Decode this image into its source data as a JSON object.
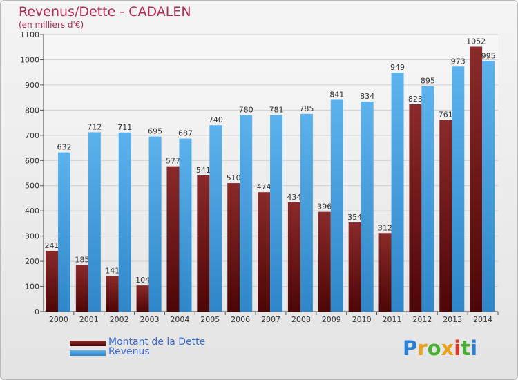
{
  "chart_data": {
    "type": "bar",
    "title": "Revenus/Dette - CADALEN",
    "subtitle": "(en milliers d'€)",
    "categories": [
      "2000",
      "2001",
      "2002",
      "2003",
      "2004",
      "2005",
      "2006",
      "2007",
      "2008",
      "2009",
      "2010",
      "2011",
      "2012",
      "2013",
      "2014"
    ],
    "series": [
      {
        "name": "Montant de la Dette",
        "color": "#6e1010",
        "values": [
          241,
          185,
          141,
          104,
          577,
          541,
          510,
          474,
          434,
          396,
          354,
          312,
          823,
          761,
          1052
        ]
      },
      {
        "name": "Revenus",
        "color": "#3a9ad9",
        "values": [
          632,
          712,
          711,
          695,
          687,
          740,
          780,
          781,
          785,
          841,
          834,
          949,
          895,
          973,
          995
        ]
      }
    ],
    "ylim": [
      0,
      1100
    ],
    "yticks": [
      0,
      100,
      200,
      300,
      400,
      500,
      600,
      700,
      800,
      900,
      1000,
      1100
    ],
    "grid": true,
    "legend_position": "bottom-left"
  },
  "logo": {
    "letters": [
      "P",
      "r",
      "o",
      "x",
      "i",
      "t",
      "i"
    ],
    "colors": [
      "#2a7fd4",
      "#e8a21a",
      "#4caf35",
      "#e8a21a",
      "#d93a2a",
      "#4caf35",
      "#2a7fd4"
    ]
  }
}
